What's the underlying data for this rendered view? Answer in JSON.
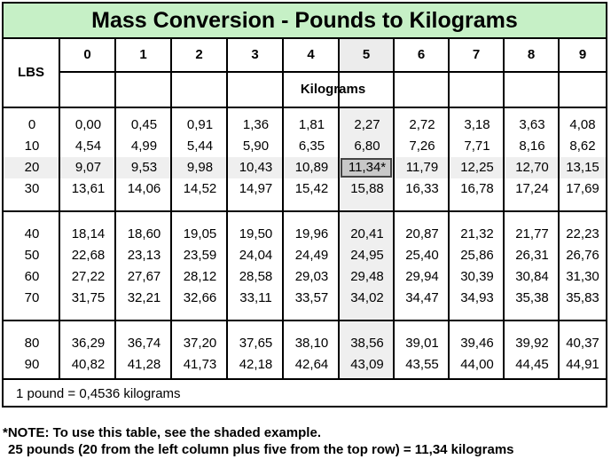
{
  "title": "Mass Conversion - Pounds to Kilograms",
  "header": {
    "lbs_label": "LBS",
    "kg_label": "Kilograms",
    "columns": [
      "0",
      "1",
      "2",
      "3",
      "4",
      "5",
      "6",
      "7",
      "8",
      "9"
    ]
  },
  "rows": [
    {
      "lbs": "0",
      "values": [
        "0,00",
        "0,45",
        "0,91",
        "1,36",
        "1,81",
        "2,27",
        "2,72",
        "3,18",
        "3,63",
        "4,08"
      ]
    },
    {
      "lbs": "10",
      "values": [
        "4,54",
        "4,99",
        "5,44",
        "5,90",
        "6,35",
        "6,80",
        "7,26",
        "7,71",
        "8,16",
        "8,62"
      ]
    },
    {
      "lbs": "20",
      "values": [
        "9,07",
        "9,53",
        "9,98",
        "10,43",
        "10,89",
        "11,34*",
        "11,79",
        "12,25",
        "12,70",
        "13,15"
      ]
    },
    {
      "lbs": "30",
      "values": [
        "13,61",
        "14,06",
        "14,52",
        "14,97",
        "15,42",
        "15,88",
        "16,33",
        "16,78",
        "17,24",
        "17,69"
      ]
    },
    {
      "lbs": "40",
      "values": [
        "18,14",
        "18,60",
        "19,05",
        "19,50",
        "19,96",
        "20,41",
        "20,87",
        "21,32",
        "21,77",
        "22,23"
      ]
    },
    {
      "lbs": "50",
      "values": [
        "22,68",
        "23,13",
        "23,59",
        "24,04",
        "24,49",
        "24,95",
        "25,40",
        "25,86",
        "26,31",
        "26,76"
      ]
    },
    {
      "lbs": "60",
      "values": [
        "27,22",
        "27,67",
        "28,12",
        "28,58",
        "29,03",
        "29,48",
        "29,94",
        "30,39",
        "30,84",
        "31,30"
      ]
    },
    {
      "lbs": "70",
      "values": [
        "31,75",
        "32,21",
        "32,66",
        "33,11",
        "33,57",
        "34,02",
        "34,47",
        "34,93",
        "35,38",
        "35,83"
      ]
    },
    {
      "lbs": "80",
      "values": [
        "36,29",
        "36,74",
        "37,20",
        "37,65",
        "38,10",
        "38,56",
        "39,01",
        "39,46",
        "39,92",
        "40,37"
      ]
    },
    {
      "lbs": "90",
      "values": [
        "40,82",
        "41,28",
        "41,73",
        "42,18",
        "42,64",
        "43,09",
        "43,55",
        "44,00",
        "44,45",
        "44,91"
      ]
    }
  ],
  "footer": "1 pound = 0,4536 kilograms",
  "note": {
    "line1": "*NOTE: To use this table, see the shaded example.",
    "line2": "25 pounds (20 from the left column plus five from the top row) = 11,34 kilograms"
  },
  "colors": {
    "title_bg": "#c6f0c6",
    "shade": "#efefef",
    "highlight": "#c8c8c8"
  }
}
